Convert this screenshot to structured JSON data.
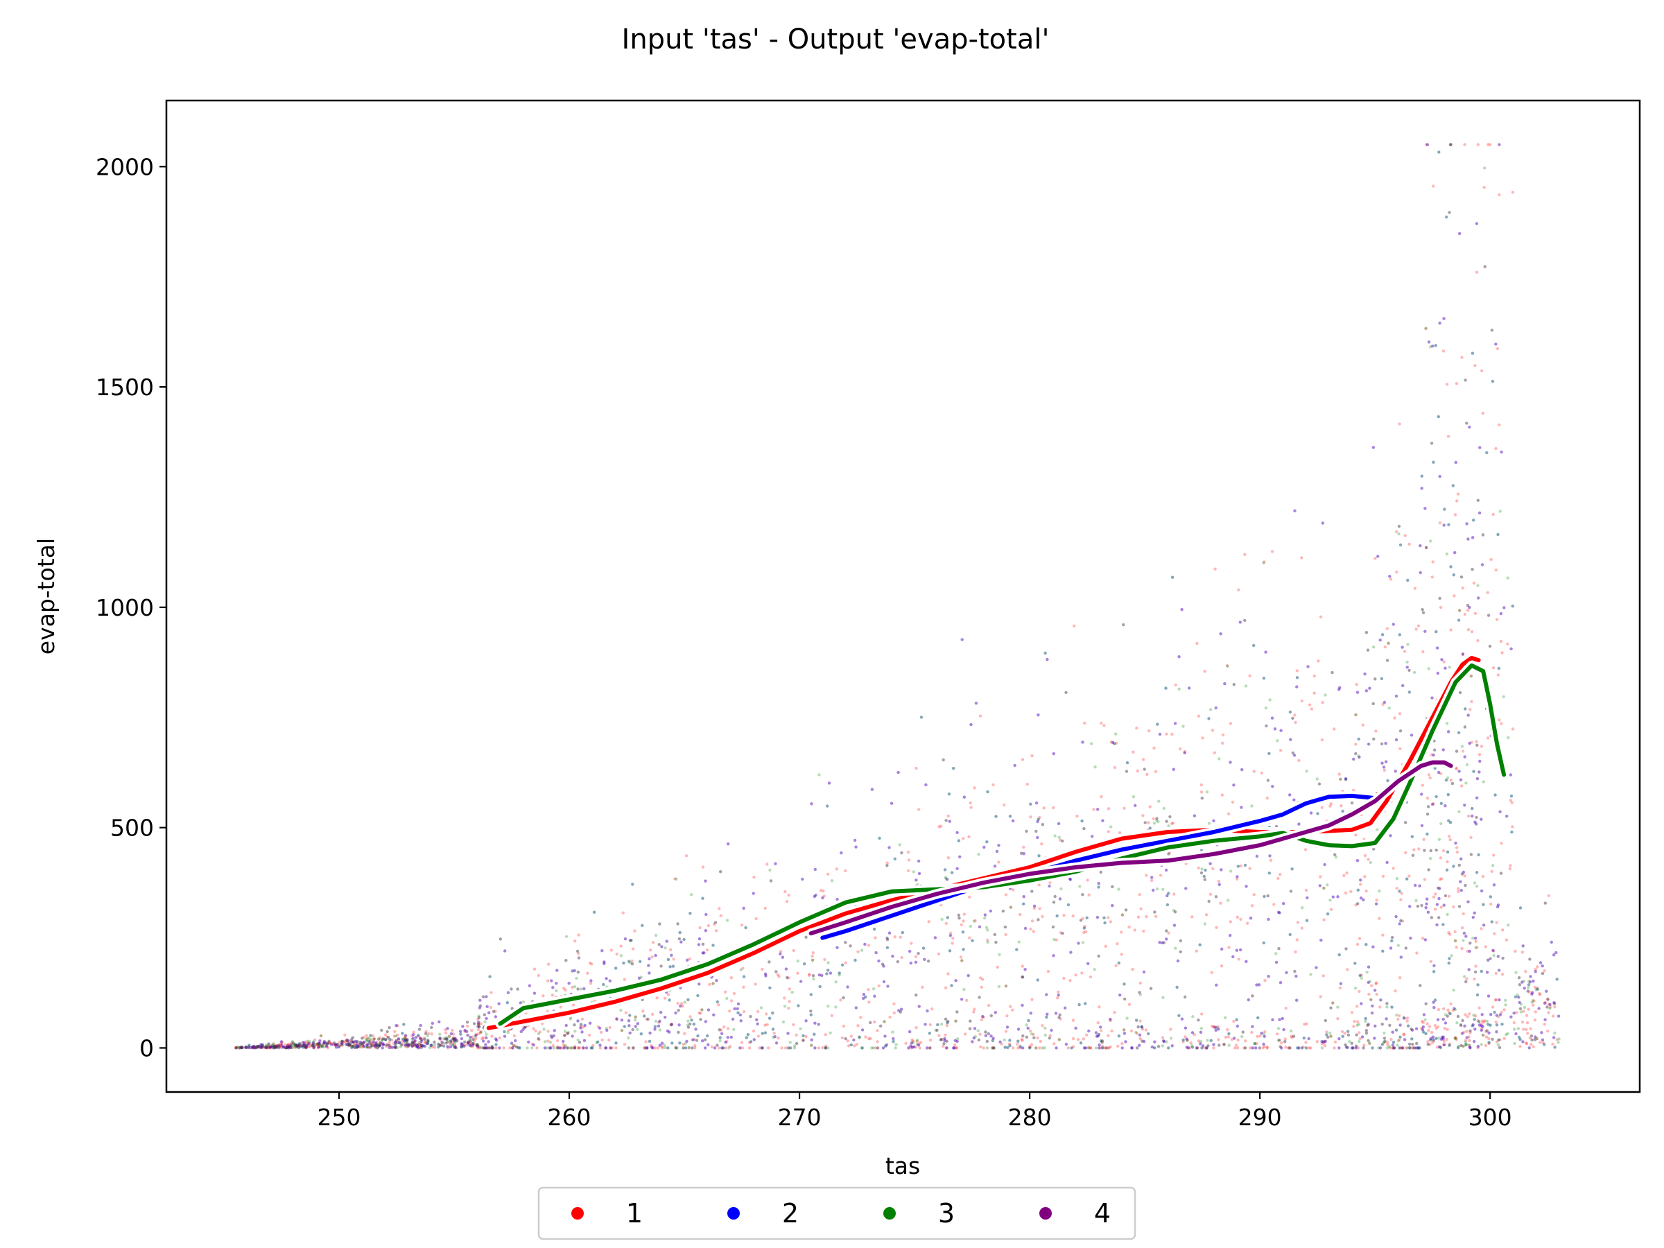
{
  "chart_data": {
    "type": "scatter",
    "title": "Input 'tas' - Output 'evap-total'",
    "xlabel": "tas",
    "ylabel": "evap-total",
    "xlim": [
      242.5,
      306.5
    ],
    "ylim": [
      -100,
      2150
    ],
    "xticks": [
      250,
      260,
      270,
      280,
      290,
      300
    ],
    "yticks": [
      0,
      500,
      1000,
      1500,
      2000
    ],
    "grid": false,
    "legend_position": "bottom-center-outside",
    "series": [
      {
        "name": "1",
        "color": "#ff0000",
        "trend": {
          "x": [
            256.5,
            258,
            260,
            262,
            264,
            266,
            268,
            270,
            272,
            274,
            276,
            278,
            280,
            282,
            284,
            286,
            288,
            290,
            292,
            294,
            294.8,
            295.5,
            296.5,
            297.5,
            298.3,
            298.8,
            299.2,
            299.5
          ],
          "y": [
            45,
            60,
            80,
            105,
            135,
            170,
            215,
            265,
            305,
            335,
            360,
            385,
            410,
            445,
            475,
            490,
            495,
            490,
            490,
            495,
            510,
            560,
            650,
            750,
            830,
            870,
            885,
            880
          ]
        }
      },
      {
        "name": "2",
        "color": "#0000ff",
        "trend": {
          "x": [
            271,
            272,
            274,
            276,
            278,
            280,
            282,
            284,
            286,
            288,
            290,
            291,
            292,
            293,
            294,
            295
          ],
          "y": [
            250,
            265,
            300,
            335,
            370,
            395,
            425,
            450,
            470,
            490,
            515,
            530,
            555,
            570,
            572,
            567
          ]
        }
      },
      {
        "name": "3",
        "color": "#008000",
        "trend": {
          "x": [
            257,
            258,
            260,
            262,
            264,
            266,
            268,
            270,
            272,
            274,
            276,
            278,
            280,
            282,
            284,
            286,
            288,
            290,
            291,
            292,
            293,
            294,
            295,
            295.8,
            296.5,
            297.5,
            298.5,
            299.2,
            299.7,
            300,
            300.3,
            300.6
          ],
          "y": [
            55,
            90,
            110,
            130,
            155,
            190,
            235,
            285,
            330,
            355,
            360,
            365,
            380,
            400,
            430,
            455,
            470,
            480,
            488,
            470,
            460,
            458,
            465,
            520,
            600,
            720,
            830,
            868,
            855,
            780,
            690,
            620
          ]
        }
      },
      {
        "name": "4",
        "color": "#800080",
        "trend": {
          "x": [
            270.5,
            272,
            274,
            276,
            278,
            280,
            282,
            284,
            286,
            288,
            290,
            292,
            293,
            294,
            295,
            296,
            297,
            297.5,
            298,
            298.3
          ],
          "y": [
            260,
            285,
            320,
            350,
            375,
            395,
            410,
            420,
            425,
            440,
            460,
            490,
            505,
            530,
            560,
            605,
            640,
            648,
            648,
            640
          ]
        }
      }
    ],
    "scatter_model": {
      "n_points_per_series": 1300,
      "point_alpha": 0.28
    }
  }
}
